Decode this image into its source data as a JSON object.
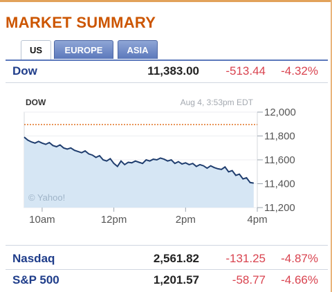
{
  "title": "MARKET SUMMARY",
  "tabs": [
    {
      "label": "US",
      "active": true
    },
    {
      "label": "EUROPE",
      "active": false
    },
    {
      "label": "ASIA",
      "active": false
    }
  ],
  "quotes_top": [
    {
      "name": "Dow",
      "price": "11,383.00",
      "change": "-513.44",
      "percent": "-4.32%"
    }
  ],
  "quotes_bottom": [
    {
      "name": "Nasdaq",
      "price": "2,561.82",
      "change": "-131.25",
      "percent": "-4.87%"
    },
    {
      "name": "S&P 500",
      "price": "1,201.57",
      "change": "-58.77",
      "percent": "-4.66%"
    }
  ],
  "colors": {
    "accent": "#cc5500",
    "link": "#1f3d8a",
    "negative": "#d9434f",
    "chart_fill": "#d6e6f4",
    "chart_line": "#1f3d6e",
    "prev_close": "#e07020"
  },
  "chart_data": {
    "type": "area",
    "symbol_label": "DOW",
    "timestamp": "Aug 4, 3:53pm EDT",
    "watermark": "© Yahoo!",
    "x_tick_labels": [
      "10am",
      "12pm",
      "2pm",
      "4pm"
    ],
    "y_tick_labels": [
      "12,000",
      "11,800",
      "11,600",
      "11,400",
      "11,200"
    ],
    "y_ticks": [
      12000,
      11800,
      11600,
      11400,
      11200
    ],
    "ylim": [
      11200,
      12000
    ],
    "x_ticks": [
      10,
      12,
      14,
      16
    ],
    "xlim": [
      9.5,
      16.0
    ],
    "previous_close": 11896,
    "series": [
      {
        "x": [
          9.5,
          9.6,
          9.7,
          9.8,
          9.9,
          10.0,
          10.1,
          10.2,
          10.3,
          10.4,
          10.5,
          10.6,
          10.7,
          10.8,
          10.9,
          11.0,
          11.1,
          11.2,
          11.3,
          11.4,
          11.5,
          11.6,
          11.7,
          11.8,
          11.9,
          12.0,
          12.1,
          12.2,
          12.3,
          12.4,
          12.5,
          12.6,
          12.7,
          12.8,
          12.9,
          13.0,
          13.1,
          13.2,
          13.3,
          13.4,
          13.5,
          13.6,
          13.7,
          13.8,
          13.9,
          14.0,
          14.1,
          14.2,
          14.3,
          14.4,
          14.5,
          14.6,
          14.7,
          14.8,
          14.9,
          15.0,
          15.1,
          15.2,
          15.3,
          15.4,
          15.5,
          15.6,
          15.7,
          15.8,
          15.9
        ],
        "y": [
          11790,
          11765,
          11750,
          11740,
          11755,
          11740,
          11730,
          11745,
          11720,
          11710,
          11725,
          11700,
          11690,
          11700,
          11680,
          11670,
          11660,
          11675,
          11650,
          11640,
          11620,
          11635,
          11600,
          11590,
          11610,
          11570,
          11545,
          11590,
          11560,
          11580,
          11575,
          11590,
          11580,
          11570,
          11600,
          11590,
          11605,
          11600,
          11615,
          11605,
          11590,
          11600,
          11570,
          11585,
          11565,
          11575,
          11560,
          11570,
          11545,
          11560,
          11550,
          11530,
          11550,
          11535,
          11525,
          11520,
          11540,
          11500,
          11510,
          11470,
          11480,
          11440,
          11450,
          11410,
          11405
        ]
      }
    ]
  }
}
